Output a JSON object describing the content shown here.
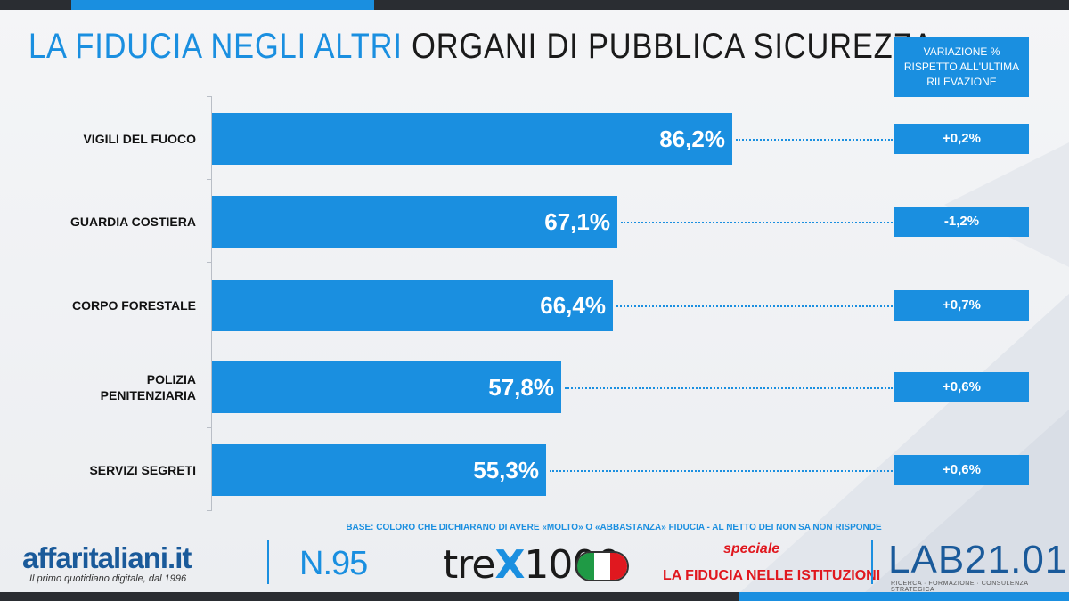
{
  "title": {
    "highlight": "LA FIDUCIA NEGLI ALTRI",
    "rest": "ORGANI DI PUBBLICA SICUREZZA"
  },
  "variation_header": [
    "VARIAZIONE %",
    "RISPETTO ALL'ULTIMA",
    "RILEVAZIONE"
  ],
  "chart_data": {
    "type": "bar",
    "orientation": "horizontal",
    "categories": [
      "VIGILI DEL FUOCO",
      "GUARDIA COSTIERA",
      "CORPO FORESTALE",
      "POLIZIA PENITENZIARIA",
      "SERVIZI SEGRETI"
    ],
    "category_lines": [
      [
        "VIGILI DEL FUOCO"
      ],
      [
        "GUARDIA COSTIERA"
      ],
      [
        "CORPO FORESTALE"
      ],
      [
        "POLIZIA",
        "PENITENZIARIA"
      ],
      [
        "SERVIZI SEGRETI"
      ]
    ],
    "values": [
      86.2,
      67.1,
      66.4,
      57.8,
      55.3
    ],
    "value_labels": [
      "86,2%",
      "67,1%",
      "66,4%",
      "57,8%",
      "55,3%"
    ],
    "variation": [
      "+0,2%",
      "-1,2%",
      "+0,7%",
      "+0,6%",
      "+0,6%"
    ],
    "xlim": [
      0,
      100
    ],
    "bar_color": "#1a8fe0"
  },
  "base_note": "BASE: COLORO CHE DICHIARANO DI AVERE «MOLTO» O «ABBASTANZA» FIDUCIA - AL NETTO DEI NON SA NON RISPONDE",
  "footer": {
    "affaritaliani": "affaritaliani.it",
    "affaritaliani_tagline": "Il primo quotidiano digitale, dal 1996",
    "issue": "N.95",
    "trex_prefix": "tre",
    "trex_x": "X",
    "trex_suffix": "1000",
    "speciale": "speciale",
    "speciale_title": "LA FIDUCIA NELLE ISTITUZIONI",
    "lab": "LAB21.01",
    "lab_sub": "RICERCA · FORMAZIONE · CONSULENZA STRATEGICA"
  },
  "colors": {
    "accent": "#1a8fe0",
    "dark": "#2a2d32",
    "red": "#e0181f"
  }
}
